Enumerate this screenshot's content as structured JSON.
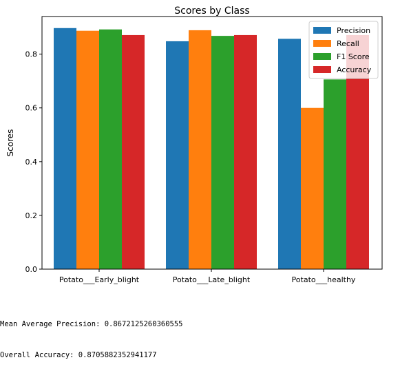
{
  "chart_data": {
    "type": "bar",
    "title": "Scores by Class",
    "xlabel": "",
    "ylabel": "Scores",
    "ylim": [
      0,
      0.94
    ],
    "yticks": [
      0.0,
      0.2,
      0.4,
      0.6,
      0.8
    ],
    "ytick_labels": [
      "0.0",
      "0.2",
      "0.4",
      "0.6",
      "0.8"
    ],
    "grid": false,
    "legend_position": "top-right",
    "categories": [
      "Potato___Early_blight",
      "Potato___Late_blight",
      "Potato___healthy"
    ],
    "series": [
      {
        "name": "Precision",
        "color": "#1f77b4",
        "values": [
          0.897,
          0.848,
          0.857
        ]
      },
      {
        "name": "Recall",
        "color": "#ff7f0e",
        "values": [
          0.887,
          0.889,
          0.6
        ]
      },
      {
        "name": "F1 Score",
        "color": "#2ca02c",
        "values": [
          0.892,
          0.868,
          0.706
        ]
      },
      {
        "name": "Accuracy",
        "color": "#d62728",
        "values": [
          0.871,
          0.871,
          0.871
        ]
      }
    ]
  },
  "output": {
    "lines": [
      "Mean Average Precision: 0.8672125260360555",
      "Overall Accuracy: 0.8705882352941177"
    ]
  }
}
